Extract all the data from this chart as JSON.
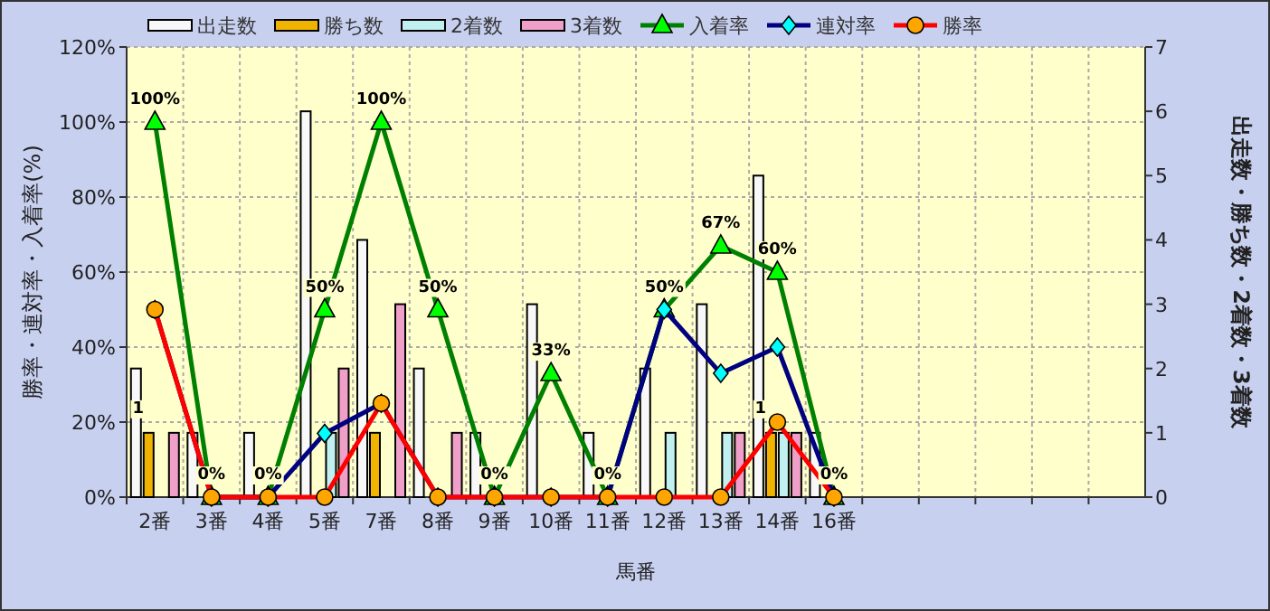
{
  "chart_data": {
    "type": "bar",
    "xlabel": "馬番",
    "ylabel": "勝率・連対率・入着率(%)",
    "y2label": "出走数・勝ち数・2着数・3着数",
    "categories": [
      "2番",
      "3番",
      "4番",
      "5番",
      "7番",
      "8番",
      "9番",
      "10番",
      "11番",
      "12番",
      "13番",
      "14番",
      "16番",
      null,
      null,
      null,
      null,
      null
    ],
    "ylim": [
      0,
      120
    ],
    "yticks": [
      {
        "value": 0,
        "label": "0%"
      },
      {
        "value": 20,
        "label": "20%"
      },
      {
        "value": 40,
        "label": "40%"
      },
      {
        "value": 60,
        "label": "60%"
      },
      {
        "value": 80,
        "label": "80%"
      },
      {
        "value": 100,
        "label": "100%"
      },
      {
        "value": 120,
        "label": "120%"
      }
    ],
    "y2lim": [
      0,
      7
    ],
    "y2ticks": [
      0,
      1,
      2,
      3,
      4,
      5,
      6,
      7
    ],
    "grid": true,
    "legend": "top",
    "series": [
      {
        "name": "出走数",
        "axis": "y2",
        "color": "#f8f8f8",
        "values": [
          2,
          1,
          1,
          6,
          4,
          2,
          1,
          3,
          1,
          2,
          3,
          5,
          1,
          null,
          null,
          null,
          null,
          null
        ]
      },
      {
        "name": "勝ち数",
        "axis": "y2",
        "color": "#f0b400",
        "values": [
          1,
          0,
          0,
          0,
          1,
          0,
          0,
          0,
          0,
          0,
          0,
          1,
          0,
          null,
          null,
          null,
          null,
          null
        ],
        "value_labels": [
          "1",
          null,
          null,
          null,
          null,
          null,
          null,
          null,
          null,
          null,
          null,
          "1",
          null,
          null,
          null,
          null,
          null,
          null
        ]
      },
      {
        "name": "2着数",
        "axis": "y2",
        "color": "#c0f0f0",
        "values": [
          0,
          0,
          0,
          1,
          0,
          0,
          0,
          0,
          0,
          1,
          1,
          1,
          0,
          null,
          null,
          null,
          null,
          null
        ]
      },
      {
        "name": "3着数",
        "axis": "y2",
        "color": "#f0a0c8",
        "values": [
          1,
          0,
          0,
          2,
          3,
          1,
          0,
          0,
          0,
          0,
          1,
          1,
          0,
          null,
          null,
          null,
          null,
          null
        ]
      },
      {
        "name": "入着率",
        "type": "line",
        "color": "#008000",
        "marker": "triangle",
        "values": [
          100,
          0,
          0,
          50,
          100,
          50,
          0,
          33,
          0,
          50,
          67,
          60,
          0,
          null,
          null,
          null,
          null,
          null
        ],
        "value_labels": [
          "100%",
          "0%",
          "0%",
          "50%",
          "100%",
          "50%",
          "0%",
          "33%",
          "0%",
          "50%",
          "67%",
          "60%",
          "0%",
          null,
          null,
          null,
          null,
          null
        ]
      },
      {
        "name": "連対率",
        "type": "line",
        "color": "#000080",
        "marker": "diamond",
        "values": [
          50,
          0,
          0,
          17,
          25,
          0,
          0,
          0,
          0,
          50,
          33,
          40,
          0,
          null,
          null,
          null,
          null,
          null
        ]
      },
      {
        "name": "勝率",
        "type": "line",
        "color": "#ff0000",
        "marker": "circle",
        "values": [
          50,
          0,
          0,
          0,
          25,
          0,
          0,
          0,
          0,
          0,
          0,
          20,
          0,
          null,
          null,
          null,
          null,
          null
        ]
      }
    ]
  }
}
